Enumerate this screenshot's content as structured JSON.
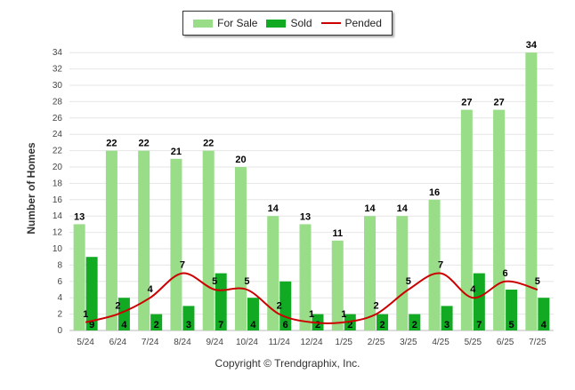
{
  "chart_data": {
    "type": "bar",
    "categories": [
      "5/24",
      "6/24",
      "7/24",
      "8/24",
      "9/24",
      "10/24",
      "11/24",
      "12/24",
      "1/25",
      "2/25",
      "3/25",
      "4/25",
      "5/25",
      "6/25",
      "7/25"
    ],
    "series": [
      {
        "name": "For Sale",
        "type": "bar",
        "color": "#99dd88",
        "values": [
          13,
          22,
          22,
          21,
          22,
          20,
          14,
          13,
          11,
          14,
          14,
          16,
          27,
          27,
          34
        ]
      },
      {
        "name": "Sold",
        "type": "bar",
        "color": "#11aa22",
        "values": [
          9,
          4,
          2,
          3,
          7,
          4,
          6,
          2,
          2,
          2,
          2,
          3,
          7,
          5,
          4
        ]
      },
      {
        "name": "Pended",
        "type": "line",
        "color": "#cc0000",
        "values": [
          1,
          2,
          4,
          7,
          5,
          5,
          2,
          1,
          1,
          2,
          5,
          7,
          4,
          6,
          5
        ]
      }
    ],
    "ylabel": "Number of Homes",
    "ylim": [
      0,
      35
    ],
    "yticks": [
      0,
      2,
      4,
      6,
      8,
      10,
      12,
      14,
      16,
      18,
      20,
      22,
      24,
      26,
      28,
      30,
      32,
      34
    ],
    "grid": true,
    "legend_position": "top"
  },
  "copyright": "Copyright © Trendgraphix, Inc."
}
